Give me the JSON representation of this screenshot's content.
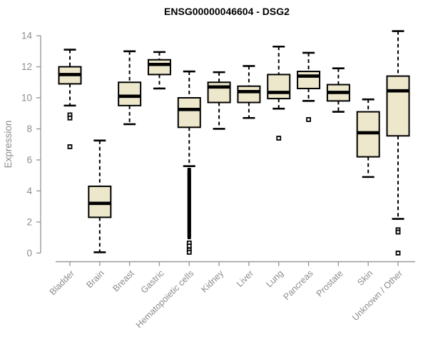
{
  "chart_data": {
    "type": "boxplot",
    "title": "ENSG00000046604 - DSG2",
    "ylabel": "Expression",
    "ylim": [
      0,
      14
    ],
    "yticks": [
      0,
      2,
      4,
      6,
      8,
      10,
      12,
      14
    ],
    "grid": false,
    "categories": [
      "Bladder",
      "Brain",
      "Breast",
      "Gastric",
      "Hematopoietic cells",
      "Kidney",
      "Liver",
      "Lung",
      "Pancreas",
      "Prostate",
      "Skin",
      "Unknown / Other"
    ],
    "series": [
      {
        "category": "Bladder",
        "whisker_low": 9.5,
        "q1": 10.9,
        "median": 11.5,
        "q3": 12.0,
        "whisker_high": 13.1,
        "outliers": [
          8.9,
          8.7,
          6.85
        ]
      },
      {
        "category": "Brain",
        "whisker_low": 0.05,
        "q1": 2.3,
        "median": 3.2,
        "q3": 4.3,
        "whisker_high": 7.25,
        "outliers": []
      },
      {
        "category": "Breast",
        "whisker_low": 8.3,
        "q1": 9.5,
        "median": 10.1,
        "q3": 11.0,
        "whisker_high": 13.0,
        "outliers": []
      },
      {
        "category": "Gastric",
        "whisker_low": 10.6,
        "q1": 11.5,
        "median": 12.15,
        "q3": 12.45,
        "whisker_high": 12.95,
        "outliers": []
      },
      {
        "category": "Hematopoietic cells",
        "whisker_low": 5.6,
        "q1": 8.1,
        "median": 9.25,
        "q3": 10.0,
        "whisker_high": 11.7,
        "outliers": [
          0.65,
          0.45,
          0.2,
          0.05
        ],
        "outlier_band": {
          "min": 1.0,
          "max": 5.4,
          "step": 0.06
        }
      },
      {
        "category": "Kidney",
        "whisker_low": 8.0,
        "q1": 9.7,
        "median": 10.7,
        "q3": 11.0,
        "whisker_high": 11.65,
        "outliers": []
      },
      {
        "category": "Liver",
        "whisker_low": 8.7,
        "q1": 9.7,
        "median": 10.4,
        "q3": 10.75,
        "whisker_high": 12.05,
        "outliers": []
      },
      {
        "category": "Lung",
        "whisker_low": 9.3,
        "q1": 9.95,
        "median": 10.35,
        "q3": 11.5,
        "whisker_high": 13.3,
        "outliers": [
          7.4
        ]
      },
      {
        "category": "Pancreas",
        "whisker_low": 9.8,
        "q1": 10.6,
        "median": 11.4,
        "q3": 11.7,
        "whisker_high": 12.9,
        "outliers": [
          8.6
        ]
      },
      {
        "category": "Prostate",
        "whisker_low": 9.1,
        "q1": 9.8,
        "median": 10.35,
        "q3": 10.85,
        "whisker_high": 11.9,
        "outliers": []
      },
      {
        "category": "Skin",
        "whisker_low": 4.9,
        "q1": 6.2,
        "median": 7.75,
        "q3": 9.1,
        "whisker_high": 9.9,
        "outliers": []
      },
      {
        "category": "Unknown / Other",
        "whisker_low": 2.2,
        "q1": 7.55,
        "median": 10.45,
        "q3": 11.4,
        "whisker_high": 14.3,
        "outliers": [
          1.5,
          1.35,
          0.0
        ]
      }
    ],
    "colors": {
      "box_fill": "#EDE7CB",
      "box_border": "#000000",
      "median": "#000000",
      "axis_line": "#999999",
      "tick_label": "#8c8c8c",
      "title": "#000000",
      "background": "#ffffff"
    }
  }
}
